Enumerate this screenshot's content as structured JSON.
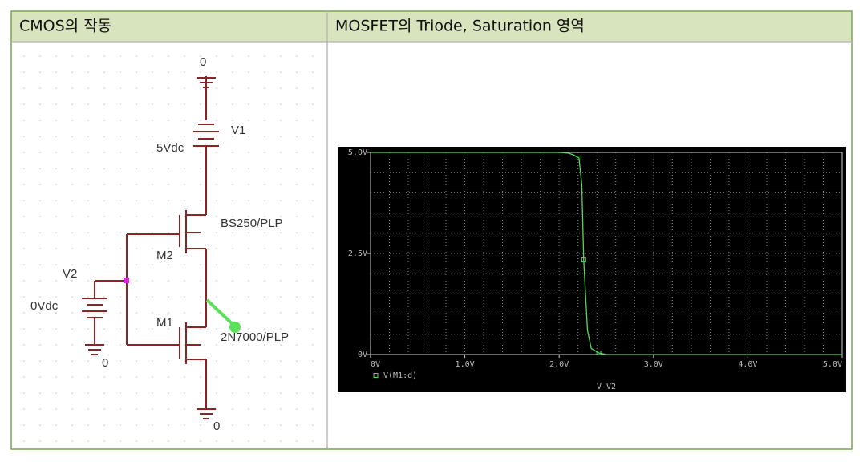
{
  "header": {
    "left": "CMOS의 작동",
    "right": "MOSFET의 Triode, Saturation 영역"
  },
  "schematic": {
    "labels": {
      "gnd_top": "0",
      "v1": "V1",
      "v1_value": "5Vdc",
      "m2_model": "BS250/PLP",
      "m2": "M2",
      "v2": "V2",
      "v2_value": "0Vdc",
      "m1": "M1",
      "m1_model": "2N7000/PLP",
      "gnd_v2": "0",
      "gnd_bottom": "0"
    }
  },
  "plot": {
    "type": "line",
    "xlim": [
      0,
      5
    ],
    "ylim": [
      0,
      5
    ],
    "xticks": [
      {
        "value": 0,
        "label": "0V"
      },
      {
        "value": 1,
        "label": "1.0V"
      },
      {
        "value": 2,
        "label": "2.0V"
      },
      {
        "value": 3,
        "label": "3.0V"
      },
      {
        "value": 4,
        "label": "4.0V"
      },
      {
        "value": 5,
        "label": "5.0V"
      }
    ],
    "yticks": [
      {
        "value": 0,
        "label": "0V"
      },
      {
        "value": 2.5,
        "label": "2.5V"
      },
      {
        "value": 5,
        "label": "5.0V"
      }
    ],
    "xlabel": "V_V2",
    "grid": true,
    "grid_x_step": 0.2,
    "grid_y_step": 0.5,
    "background": "#000000",
    "series": [
      {
        "name": "V(M1:d)",
        "color": "#5fd35f",
        "x": [
          0,
          2.0,
          2.1,
          2.15,
          2.21,
          2.24,
          2.26,
          2.3,
          2.34,
          2.42,
          2.5,
          5.0
        ],
        "y": [
          5,
          5,
          4.98,
          4.94,
          4.86,
          4.2,
          2.34,
          0.6,
          0.15,
          0.04,
          0,
          0
        ],
        "marker_x": [
          2.21,
          2.26,
          2.42
        ],
        "marker_y": [
          4.86,
          2.34,
          0.04
        ]
      }
    ]
  }
}
